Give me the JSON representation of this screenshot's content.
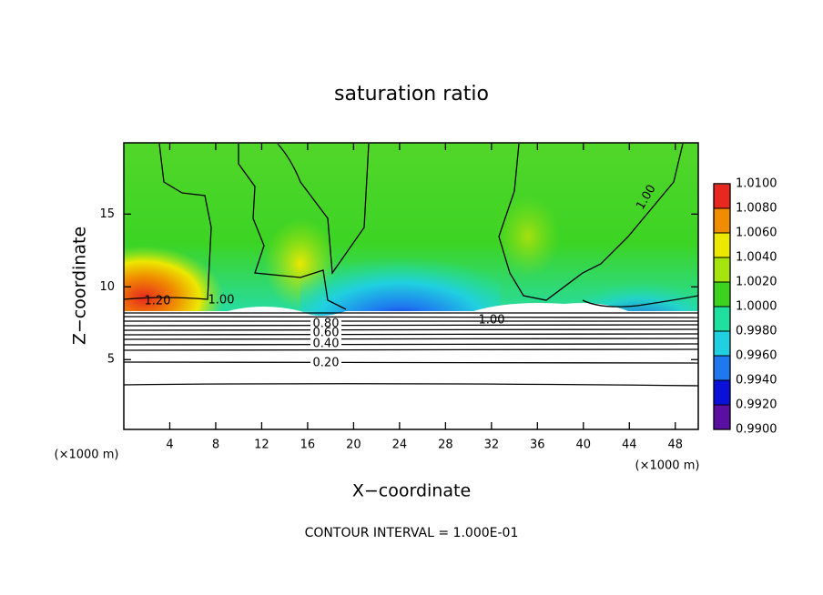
{
  "chart_data": {
    "type": "contour",
    "title": "saturation ratio",
    "xlabel": "X−coordinate",
    "ylabel": "Z−coordinate",
    "x_unit_label": "(×1000 m)",
    "y_unit_label": "(×1000 m)",
    "footnote": "CONTOUR INTERVAL = 1.000E-01",
    "xlim": [
      0,
      50
    ],
    "ylim": [
      0.2,
      19.9
    ],
    "xticks": [
      4,
      8,
      12,
      16,
      20,
      24,
      28,
      32,
      36,
      40,
      44,
      48
    ],
    "yticks": [
      5,
      10,
      15
    ],
    "colorbar": {
      "levels": [
        {
          "value": 0.99,
          "label": "0.9900"
        },
        {
          "value": 0.992,
          "label": "0.9920"
        },
        {
          "value": 0.994,
          "label": "0.9940"
        },
        {
          "value": 0.996,
          "label": "0.9960"
        },
        {
          "value": 0.998,
          "label": "0.9980"
        },
        {
          "value": 1.0,
          "label": "1.0000"
        },
        {
          "value": 1.002,
          "label": "1.0020"
        },
        {
          "value": 1.004,
          "label": "1.0040"
        },
        {
          "value": 1.006,
          "label": "1.0060"
        },
        {
          "value": 1.008,
          "label": "1.0080"
        },
        {
          "value": 1.01,
          "label": "1.0100"
        }
      ],
      "colors": [
        "#5a0fa0",
        "#0a10d8",
        "#1e78f0",
        "#20d0e0",
        "#20e0a0",
        "#3cd21e",
        "#a6e40e",
        "#ece800",
        "#f08c00",
        "#e8281e",
        "#f49494"
      ]
    },
    "contour_labels": [
      {
        "value": 1.2,
        "label": "1.20"
      },
      {
        "value": 1.0,
        "label": "1.00"
      },
      {
        "value": 1.0,
        "label": "1.00"
      },
      {
        "value": 1.0,
        "label": "1.00"
      },
      {
        "value": 0.8,
        "label": "0.80"
      },
      {
        "value": 0.6,
        "label": "0.60"
      },
      {
        "value": 0.4,
        "label": "0.40"
      },
      {
        "value": 0.2,
        "label": "0.20"
      }
    ]
  }
}
